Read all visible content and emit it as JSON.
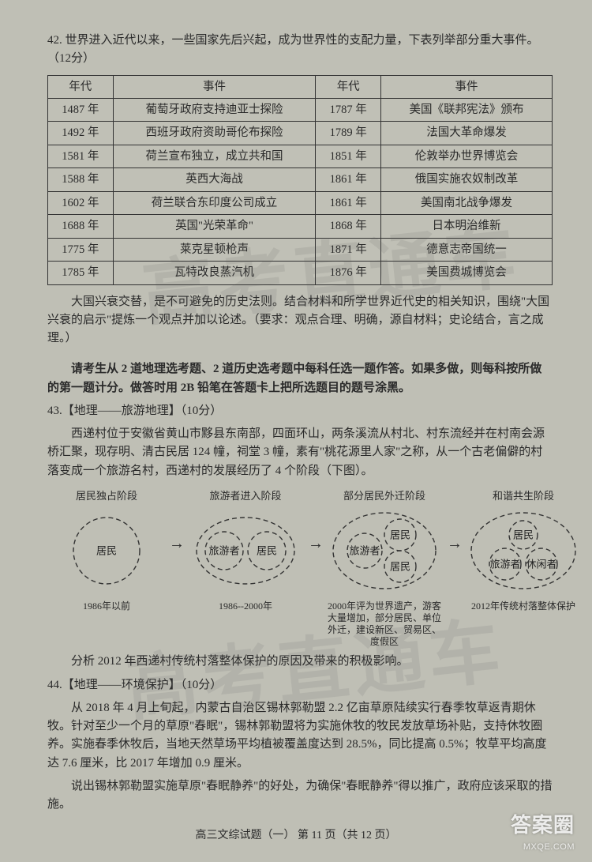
{
  "q42": {
    "intro": "42. 世界进入近代以来，一些国家先后兴起，成为世界性的支配力量，下表列举部分重大事件。（12分）",
    "headers": [
      "年代",
      "事件",
      "年代",
      "事件"
    ],
    "rows": [
      [
        "1487 年",
        "葡萄牙政府支持迪亚士探险",
        "1787 年",
        "美国《联邦宪法》颁布"
      ],
      [
        "1492 年",
        "西班牙政府资助哥伦布探险",
        "1789 年",
        "法国大革命爆发"
      ],
      [
        "1581 年",
        "荷兰宣布独立，成立共和国",
        "1851 年",
        "伦敦举办世界博览会"
      ],
      [
        "1588 年",
        "英西大海战",
        "1861 年",
        "俄国实施农奴制改革"
      ],
      [
        "1602 年",
        "荷兰联合东印度公司成立",
        "1861 年",
        "美国南北战争爆发"
      ],
      [
        "1688 年",
        "英国\"光荣革命\"",
        "1868 年",
        "日本明治维新"
      ],
      [
        "1775 年",
        "莱克星顿枪声",
        "1871 年",
        "德意志帝国统一"
      ],
      [
        "1785 年",
        "瓦特改良蒸汽机",
        "1876 年",
        "美国费城博览会"
      ]
    ],
    "tail": "大国兴衰交替，是不可避免的历史法则。结合材料和所学世界近代史的相关知识，围绕\"大国兴衰的启示\"提炼一个观点并加以论述。（要求：观点合理、明确，源自材料；史论结合，言之成理。）"
  },
  "select_note": "请考生从 2 道地理选考题、2 道历史选考题中每科任选一题作答。如果多做，则每科按所做的第一题计分。做答时用 2B 铅笔在答题卡上把所选题目的题号涂黑。",
  "q43": {
    "title": "43.【地理——旅游地理】（10分）",
    "p1": "西递村位于安徽省黄山市黟县东南部，四面环山，两条溪流从村北、村东流经并在村南会源桥汇聚，现存明、清古民居 124 幢，祠堂 3 幢，素有\"桃花源里人家\"之称，从一个古老偏僻的村落变成一个旅游名村，西递村的发展经历了 4 个阶段（下图）。",
    "stages": [
      {
        "title": "居民独占阶段",
        "caption": "1986年以前",
        "nodes": [
          "居民"
        ]
      },
      {
        "title": "旅游者进入阶段",
        "caption": "1986--2000年",
        "nodes": [
          "旅游者",
          "居民"
        ]
      },
      {
        "title": "部分居民外迁阶段",
        "caption": "2000年评为世界遗产，游客大量增加，部分居民、单位外迁，建设新区、贸易区、度假区",
        "nodes": [
          "居民",
          "旅游者",
          "居民"
        ]
      },
      {
        "title": "和谐共生阶段",
        "caption": "2012年传统村落整体保护",
        "nodes": [
          "居民",
          "旅游者",
          "休闲者"
        ]
      }
    ],
    "ask": "分析 2012 年西递村传统村落整体保护的原因及带来的积极影响。"
  },
  "q44": {
    "title": "44.【地理——环境保护】（10分）",
    "p1": "从 2018 年 4 月上旬起，内蒙古自治区锡林郭勒盟 2.2 亿亩草原陆续实行春季牧草返青期休牧。针对至少一个月的草原\"春眠\"，锡林郭勒盟将为实施休牧的牧民发放草场补贴，支持休牧圈养。实施春季休牧后，当地天然草场平均植被覆盖度达到 28.5%，同比提高 0.5%；牧草平均高度达 7.6 厘米，比 2017 年增加 0.9 厘米。",
    "ask": "说出锡林郭勒盟实施草原\"春眠静养\"的好处，为确保\"春眠静养\"得以推广，政府应该采取的措施。"
  },
  "footer": "高三文综试题（一）  第 11 页（共 12 页）",
  "watermark": {
    "line1": "答案圈",
    "line2": "MXQE.COM"
  },
  "diagram_style": {
    "dash": "6,4",
    "stroke": "#333",
    "stroke_width": 1.4,
    "text_size": 13
  }
}
